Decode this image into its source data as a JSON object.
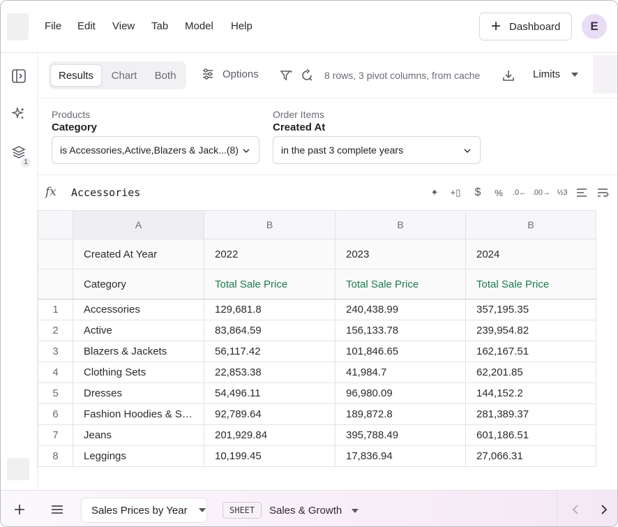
{
  "menu": {
    "items": [
      "File",
      "Edit",
      "View",
      "Tab",
      "Model",
      "Help"
    ],
    "dashboard_label": "Dashboard",
    "avatar_initial": "E"
  },
  "rail": {
    "layers_badge": "1"
  },
  "toolbar": {
    "view_modes": [
      "Results",
      "Chart",
      "Both"
    ],
    "active_mode": "Results",
    "options_label": "Options",
    "status": "8 rows, 3 pivot columns, from cache",
    "limits_label": "Limits"
  },
  "filters": [
    {
      "source": "Products",
      "field": "Category",
      "value": "is Accessories,Active,Blazers & Jack...(8)"
    },
    {
      "source": "Order Items",
      "field": "Created At",
      "value": "in the past 3 complete years"
    }
  ],
  "formula_bar": {
    "fx_label": "fx",
    "value": "Accessories"
  },
  "grid": {
    "column_letters": [
      "A",
      "B",
      "B",
      "B"
    ],
    "pivot_header": {
      "label": "Created At Year",
      "values": [
        "2022",
        "2023",
        "2024"
      ]
    },
    "dimension_header": "Category",
    "metric_headers": [
      "Total Sale Price",
      "Total Sale Price",
      "Total Sale Price"
    ],
    "rows": [
      {
        "n": "1",
        "category": "Accessories",
        "v": [
          "129,681.8",
          "240,438.99",
          "357,195.35"
        ]
      },
      {
        "n": "2",
        "category": "Active",
        "v": [
          "83,864.59",
          "156,133.78",
          "239,954.82"
        ]
      },
      {
        "n": "3",
        "category": "Blazers & Jackets",
        "v": [
          "56,117.42",
          "101,846.65",
          "162,167.51"
        ]
      },
      {
        "n": "4",
        "category": "Clothing Sets",
        "v": [
          "22,853.38",
          "41,984.7",
          "62,201.85"
        ]
      },
      {
        "n": "5",
        "category": "Dresses",
        "v": [
          "54,496.11",
          "96,980.09",
          "144,152.2"
        ]
      },
      {
        "n": "6",
        "category": "Fashion Hoodies & Sw...",
        "v": [
          "92,789.64",
          "189,872.8",
          "281,389.37"
        ]
      },
      {
        "n": "7",
        "category": "Jeans",
        "v": [
          "201,929.84",
          "395,788.49",
          "601,186.51"
        ]
      },
      {
        "n": "8",
        "category": "Leggings",
        "v": [
          "10,199.45",
          "17,836.94",
          "27,066.31"
        ]
      }
    ]
  },
  "bottom": {
    "active_tab": "Sales Prices by Year",
    "sheet_tag": "SHEET",
    "sheet_name": "Sales & Growth"
  },
  "colors": {
    "metric_green": "#1f7a49",
    "avatar_bg": "#e9ddf5"
  }
}
